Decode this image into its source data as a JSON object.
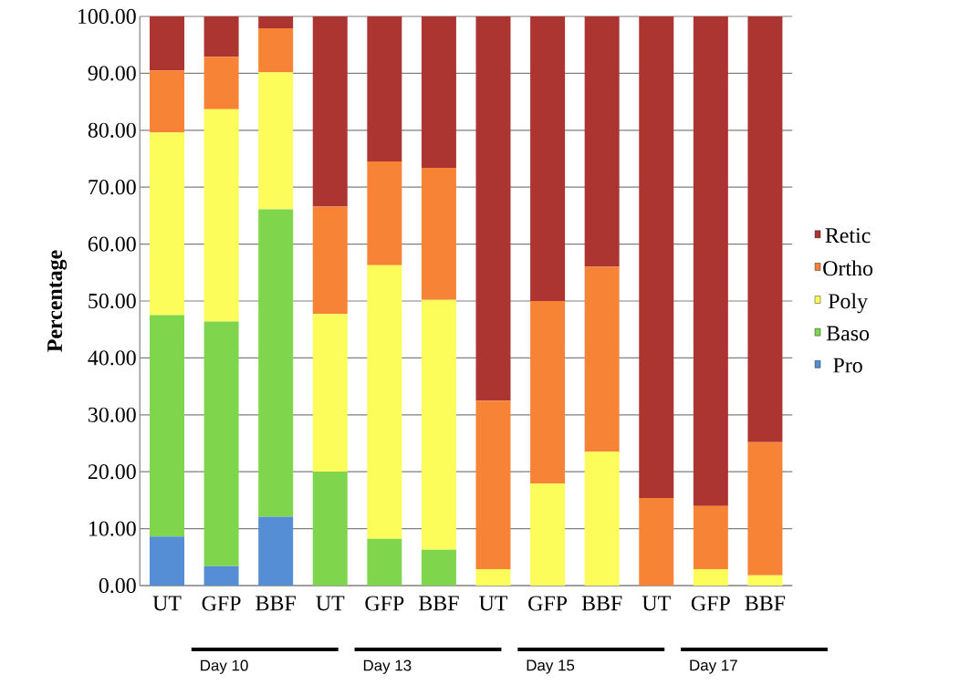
{
  "chart_data": {
    "type": "bar",
    "stacked": true,
    "ylabel": "Percentage",
    "categories": [
      "UT",
      "GFP",
      "BBF",
      "UT",
      "GFP",
      "BBF",
      "UT",
      "GFP",
      "BBF",
      "UT",
      "GFP",
      "BBF"
    ],
    "series": [
      {
        "name": "Pro",
        "color": "#558ed5",
        "values": [
          8.6,
          3.4,
          12.1,
          0,
          0,
          0,
          0,
          0,
          0,
          0,
          0,
          0
        ]
      },
      {
        "name": "Baso",
        "color": "#7fd54b",
        "values": [
          38.9,
          43.0,
          54.0,
          20.0,
          8.2,
          6.3,
          0,
          0,
          0,
          0,
          0,
          0
        ]
      },
      {
        "name": "Poly",
        "color": "#fcfc5a",
        "values": [
          32.1,
          37.3,
          24.1,
          27.7,
          48.1,
          43.9,
          2.9,
          17.9,
          23.5,
          0,
          2.9,
          1.8
        ]
      },
      {
        "name": "Ortho",
        "color": "#f78336",
        "values": [
          10.9,
          9.2,
          7.7,
          18.9,
          18.2,
          23.2,
          29.6,
          32.1,
          32.5,
          15.4,
          11.1,
          23.4
        ]
      },
      {
        "name": "Retic",
        "color": "#ac3532",
        "values": [
          9.5,
          7.1,
          2.1,
          33.4,
          25.5,
          26.6,
          67.5,
          50.0,
          44.0,
          84.6,
          86.0,
          74.8
        ]
      }
    ],
    "ylim": [
      0,
      100
    ],
    "yticks": [
      {
        "value": 0,
        "label": "0.00"
      },
      {
        "value": 10,
        "label": "10.00"
      },
      {
        "value": 20,
        "label": "20.00"
      },
      {
        "value": 30,
        "label": "30.00"
      },
      {
        "value": 40,
        "label": "40.00"
      },
      {
        "value": 50,
        "label": "50.00"
      },
      {
        "value": 60,
        "label": "60.00"
      },
      {
        "value": 70,
        "label": "70.00"
      },
      {
        "value": 80,
        "label": "80.00"
      },
      {
        "value": 90,
        "label": "90.00"
      },
      {
        "value": 100,
        "label": "100.00"
      }
    ],
    "grid": "y",
    "legend": "right",
    "annotations": [
      "Day 10",
      "Day 13",
      "Day 15",
      "Day 17"
    ]
  }
}
